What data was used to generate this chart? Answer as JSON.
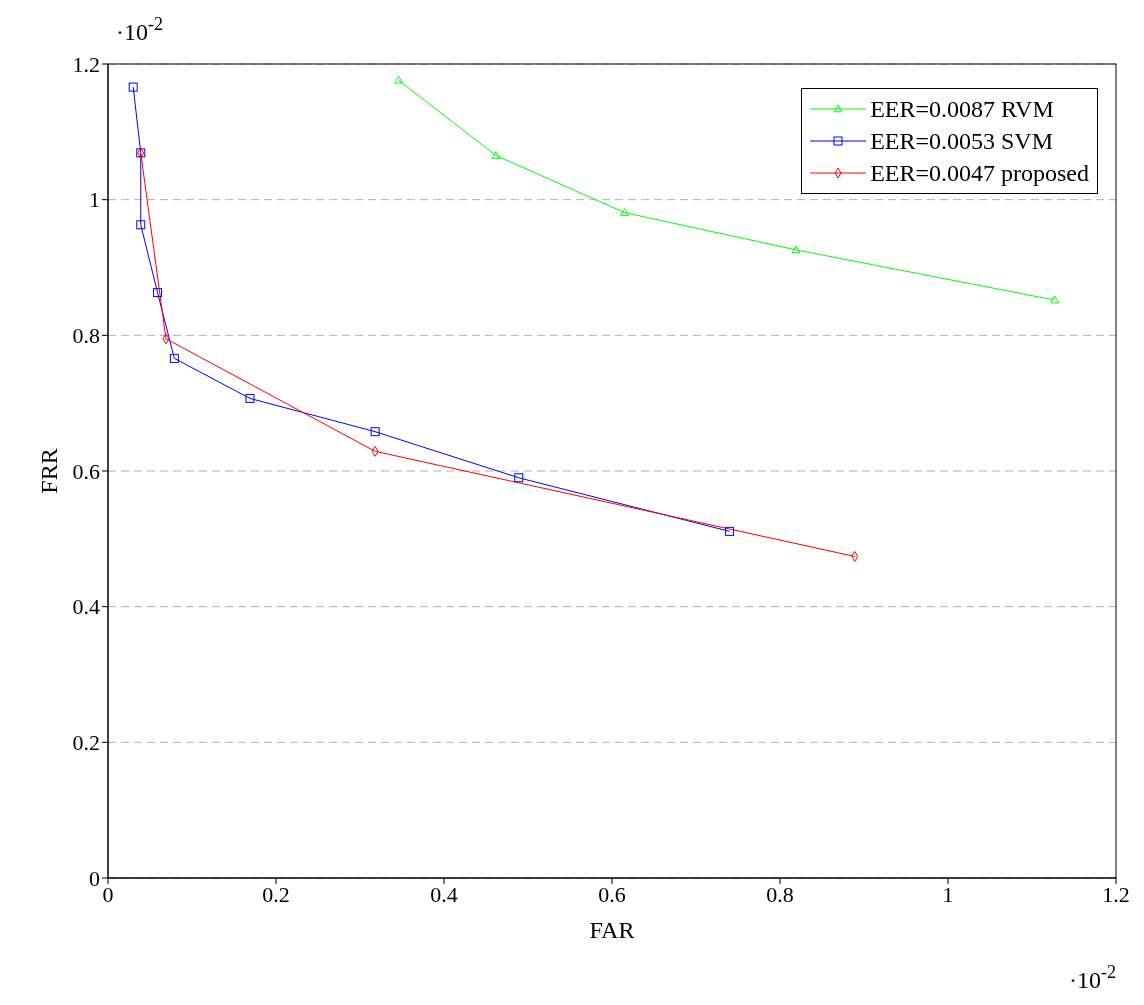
{
  "chart_data": {
    "type": "line",
    "xlabel": "FAR",
    "ylabel": "FRR",
    "xlim": [
      0,
      1.2
    ],
    "ylim": [
      0,
      1.2
    ],
    "xticks": [
      0,
      0.2,
      0.4,
      0.6,
      0.8,
      1,
      1.2
    ],
    "yticks": [
      0,
      0.2,
      0.4,
      0.6,
      0.8,
      1,
      1.2
    ],
    "grid": "y",
    "legend": "top right",
    "line_style": "solid",
    "annotations": [
      "·10$^{-2}$",
      "·10$^{-2}$"
    ],
    "series": [
      {
        "name": "EER=0.0087 RVM",
        "color": "#00ff00",
        "marker": "triangle",
        "x": [
          0.346,
          0.462,
          0.615,
          0.819,
          1.127
        ],
        "values": [
          1.176,
          1.065,
          0.981,
          0.926,
          0.852
        ]
      },
      {
        "name": "EER=0.0053 SVM",
        "color": "#0000ff",
        "marker": "square",
        "x": [
          0.03,
          0.039,
          0.039,
          0.059,
          0.079,
          0.169,
          0.318,
          0.489,
          0.74
        ],
        "values": [
          1.166,
          1.069,
          0.963,
          0.863,
          0.766,
          0.707,
          0.658,
          0.59,
          0.511
        ]
      },
      {
        "name": "EER=0.0047 proposed",
        "color": "#ff0000",
        "marker": "diamond",
        "x": [
          0.039,
          0.069,
          0.318,
          0.889
        ],
        "values": [
          1.069,
          0.795,
          0.629,
          0.474
        ]
      }
    ]
  }
}
